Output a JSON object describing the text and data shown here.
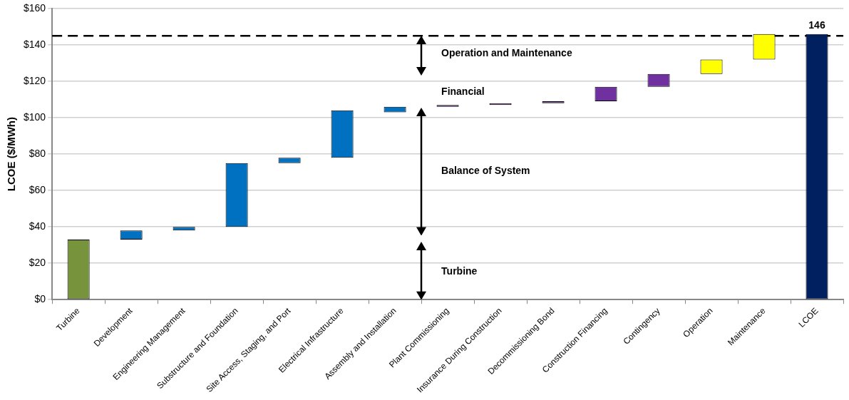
{
  "chart_data": {
    "type": "bar",
    "ylabel": "LCOE ($/MWh)",
    "categories": [
      "Turbine",
      "Development",
      "Engineering Management",
      "Substructure and Foundation",
      "Site Access, Staging, and Port",
      "Electrical Infrastructure",
      "Assembly and Installation",
      "Plant Commissioning",
      "Insurance During Construction",
      "Decommissioning Bond",
      "Construction Financing",
      "Contingency",
      "Operation",
      "Maintenance",
      "LCOE"
    ],
    "values": [
      33,
      5,
      2,
      35,
      3,
      26,
      3,
      1,
      1,
      1,
      8,
      7,
      8,
      14,
      146
    ],
    "base": [
      0,
      33,
      38,
      40,
      75,
      78,
      103,
      106,
      107,
      108,
      109,
      117,
      124,
      132,
      0
    ],
    "colors": [
      "#77933c",
      "#0070c0",
      "#0070c0",
      "#0070c0",
      "#0070c0",
      "#0070c0",
      "#0070c0",
      "#7030a0",
      "#7030a0",
      "#7030a0",
      "#7030a0",
      "#7030a0",
      "#ffff00",
      "#ffff00",
      "#002060"
    ],
    "value_labels": [
      null,
      null,
      null,
      null,
      null,
      null,
      null,
      null,
      null,
      null,
      null,
      null,
      null,
      null,
      "146"
    ],
    "ylim": [
      0,
      160
    ],
    "yticks": [
      {
        "value": 0,
        "label": "$0"
      },
      {
        "value": 20,
        "label": "$20"
      },
      {
        "value": 40,
        "label": "$40"
      },
      {
        "value": 60,
        "label": "$60"
      },
      {
        "value": 80,
        "label": "$80"
      },
      {
        "value": 100,
        "label": "$100"
      },
      {
        "value": 120,
        "label": "$120"
      },
      {
        "value": 140,
        "label": "$140"
      },
      {
        "value": 160,
        "label": "$160"
      }
    ],
    "grid": "y",
    "legend": false,
    "ref_lines": [
      {
        "axis": "y",
        "value": 145,
        "line_style": "dashed",
        "color": "#000000"
      }
    ],
    "annotations": [
      "Operation and Maintenance",
      "Financial",
      "Balance of System",
      "Turbine"
    ]
  }
}
